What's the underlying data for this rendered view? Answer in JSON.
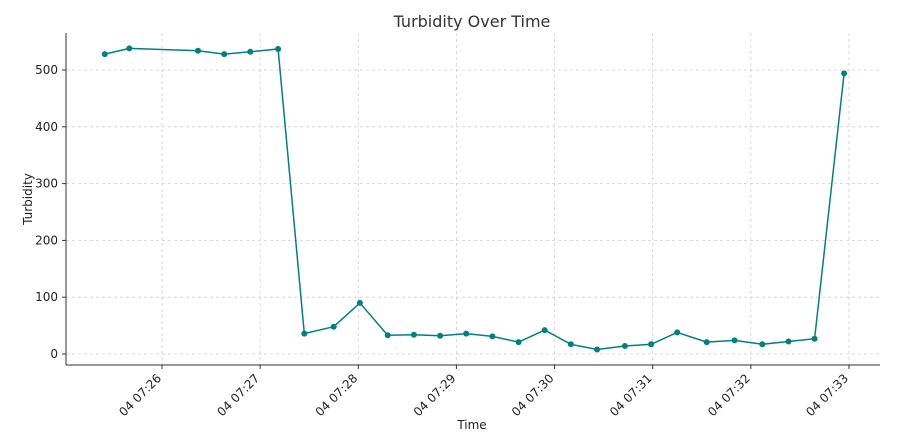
{
  "chart_data": {
    "type": "line",
    "title": "Turbidity Over Time",
    "xlabel": "Time",
    "ylabel": "Turbidity",
    "color": "#008080",
    "grid": true,
    "x_tick_labels": [
      "04 07:26",
      "04 07:27",
      "04 07:28",
      "04 07:29",
      "04 07:30",
      "04 07:31",
      "04 07:32",
      "04 07:33"
    ],
    "y_ticks": [
      0,
      100,
      200,
      300,
      400,
      500
    ],
    "series": [
      {
        "x": [
          "07:25:25",
          "07:25:40",
          "07:26:22",
          "07:26:38",
          "07:26:54",
          "07:27:11",
          "07:27:27",
          "07:27:45",
          "07:28:01",
          "07:28:18",
          "07:28:34",
          "07:28:50",
          "07:29:06",
          "07:29:22",
          "07:29:38",
          "07:29:54",
          "07:30:10",
          "07:30:26",
          "07:30:43",
          "07:30:59",
          "07:31:15",
          "07:31:33",
          "07:31:50",
          "07:32:07",
          "07:32:23",
          "07:32:39",
          "07:32:57"
        ],
        "values": [
          528,
          538,
          534,
          528,
          532,
          537,
          36,
          48,
          90,
          33,
          34,
          32,
          36,
          31,
          21,
          42,
          17,
          8,
          14,
          17,
          38,
          21,
          24,
          17,
          22,
          27,
          494
        ]
      }
    ]
  }
}
